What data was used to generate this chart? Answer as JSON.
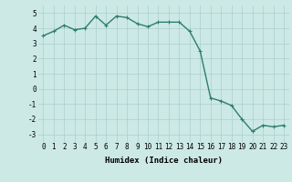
{
  "xlabel": "Humidex (Indice chaleur)",
  "x": [
    0,
    1,
    2,
    3,
    4,
    5,
    6,
    7,
    8,
    9,
    10,
    11,
    12,
    13,
    14,
    15,
    16,
    17,
    18,
    19,
    20,
    21,
    22,
    23
  ],
  "y": [
    3.5,
    3.8,
    4.2,
    3.9,
    4.0,
    4.8,
    4.2,
    4.8,
    4.7,
    4.3,
    4.1,
    4.4,
    4.4,
    4.4,
    3.8,
    2.5,
    -0.6,
    -0.8,
    -1.1,
    -2.0,
    -2.8,
    -2.4,
    -2.5,
    -2.4
  ],
  "line_color": "#2e7d6e",
  "marker": "+",
  "marker_size": 3,
  "background_color": "#cce9e5",
  "grid_color": "#aacfcc",
  "ylim": [
    -3.5,
    5.5
  ],
  "xlim": [
    -0.5,
    23.5
  ],
  "yticks": [
    -3,
    -2,
    -1,
    0,
    1,
    2,
    3,
    4,
    5
  ],
  "xticks": [
    0,
    1,
    2,
    3,
    4,
    5,
    6,
    7,
    8,
    9,
    10,
    11,
    12,
    13,
    14,
    15,
    16,
    17,
    18,
    19,
    20,
    21,
    22,
    23
  ],
  "tick_fontsize": 5.5,
  "xlabel_fontsize": 6.5,
  "line_width": 1.0
}
